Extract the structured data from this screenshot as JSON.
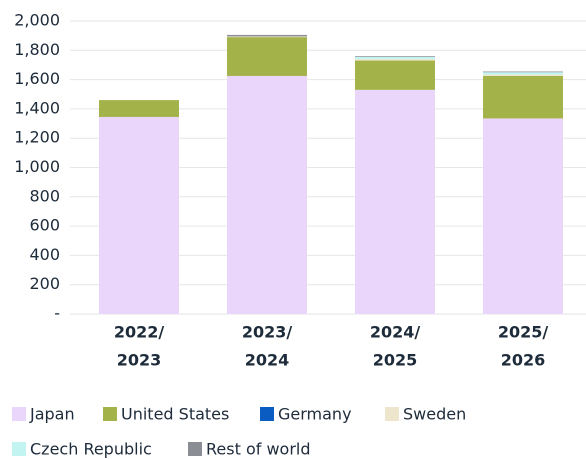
{
  "chart_data": {
    "type": "stacked_bar",
    "categories": [
      [
        "2022/",
        "2023"
      ],
      [
        "2023/",
        "2024"
      ],
      [
        "2024/",
        "2025"
      ],
      [
        "2025/",
        "2026"
      ]
    ],
    "series": [
      {
        "name": "Japan",
        "color": "#ead5fb",
        "values": [
          1345,
          1625,
          1530,
          1335
        ]
      },
      {
        "name": "United States",
        "color": "#a4b24a",
        "values": [
          115,
          265,
          200,
          290
        ]
      },
      {
        "name": "Germany",
        "color": "#0a5cc2",
        "values": [
          0,
          0,
          0,
          0
        ]
      },
      {
        "name": "Sweden",
        "color": "#ede6cc",
        "values": [
          0,
          5,
          10,
          10
        ]
      },
      {
        "name": "Czech Republic",
        "color": "#c2f5f2",
        "values": [
          0,
          0,
          15,
          15
        ]
      },
      {
        "name": "Rest of world",
        "color": "#8a8d93",
        "values": [
          0,
          10,
          5,
          5
        ]
      }
    ],
    "ylim": [
      0,
      2000
    ],
    "yticks": [
      {
        "value": 0,
        "label": "-"
      },
      200,
      400,
      600,
      800,
      {
        "value": 1000,
        "label": "1,000"
      },
      {
        "value": 1200,
        "label": "1,200"
      },
      {
        "value": 1400,
        "label": "1,400"
      },
      {
        "value": 1600,
        "label": "1,600"
      },
      {
        "value": 1800,
        "label": "1,800"
      },
      {
        "value": 2000,
        "label": "2,000"
      }
    ],
    "grid": true
  }
}
